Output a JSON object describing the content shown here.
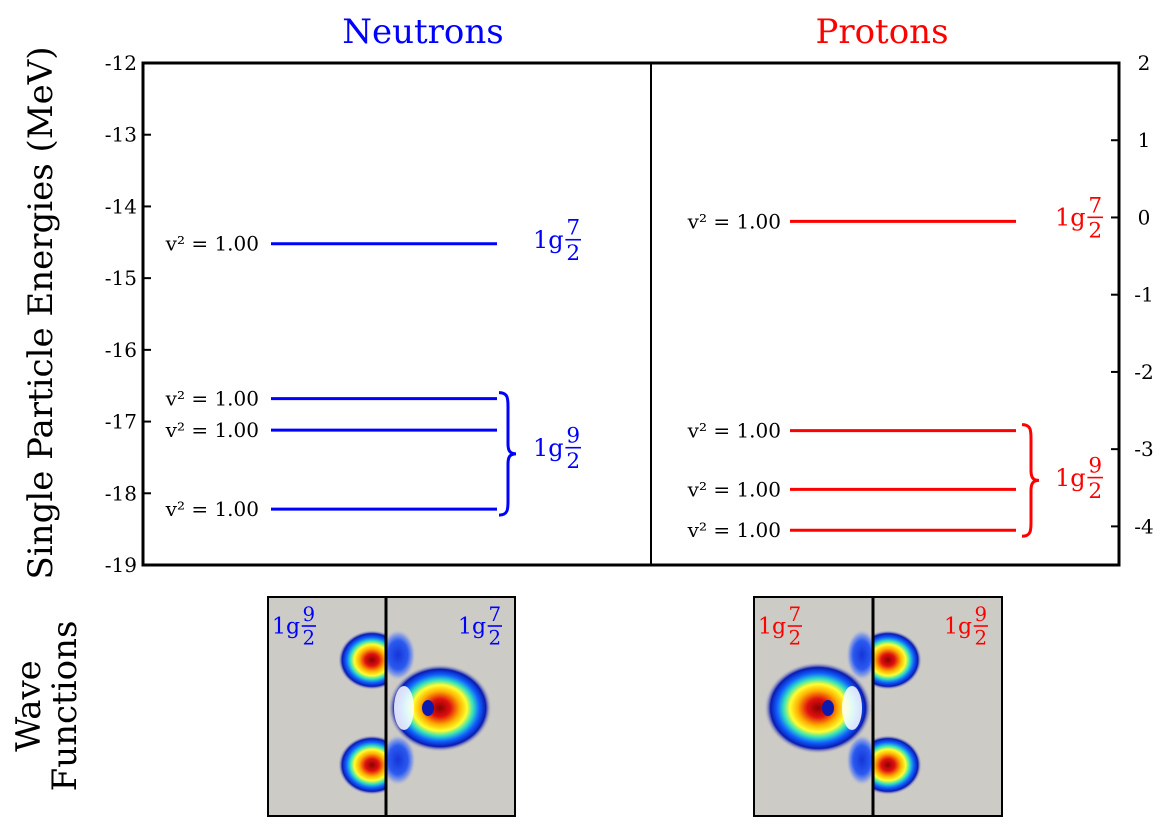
{
  "chart_data": {
    "type": "level-diagram",
    "ylabel": "Single Particle Energies (MeV)",
    "ylim": [
      -19,
      -12
    ],
    "y_ticks": [
      -12,
      -13,
      -14,
      -15,
      -16,
      -17,
      -18,
      -19
    ],
    "y2lim": [
      -4.5,
      2
    ],
    "y2_ticks": [
      2,
      1,
      0,
      -1,
      -2,
      -3,
      -4
    ],
    "panels": [
      {
        "name": "Neutrons",
        "color": "#0000ff",
        "axis": "left",
        "levels": [
          {
            "energy": -14.52,
            "occupation_label": "v² = 1.00",
            "state": "1g",
            "j": "7/2"
          },
          {
            "energy": -16.68,
            "occupation_label": "v² = 1.00",
            "state": "1g",
            "j": "9/2"
          },
          {
            "energy": -17.12,
            "occupation_label": "v² = 1.00",
            "state": "1g",
            "j": "9/2"
          },
          {
            "energy": -18.22,
            "occupation_label": "v² = 1.00",
            "state": "1g",
            "j": "9/2"
          }
        ],
        "state_labels": [
          {
            "state": "1g",
            "num": "7",
            "den": "2",
            "energy": -14.52
          },
          {
            "state": "1g",
            "num": "9",
            "den": "2",
            "energy": -17.42,
            "brace": [
              -16.68,
              -18.22
            ]
          }
        ]
      },
      {
        "name": "Protons",
        "color": "#ff0000",
        "axis": "right",
        "levels": [
          {
            "energy": -0.05,
            "occupation_label": "v² = 1.00",
            "state": "1g",
            "j": "7/2"
          },
          {
            "energy": -2.76,
            "occupation_label": "v² = 1.00",
            "state": "1g",
            "j": "9/2"
          },
          {
            "energy": -3.52,
            "occupation_label": "v² = 1.00",
            "state": "1g",
            "j": "9/2"
          },
          {
            "energy": -4.05,
            "occupation_label": "v² = 1.00",
            "state": "1g",
            "j": "9/2"
          }
        ],
        "state_labels": [
          {
            "state": "1g",
            "num": "7",
            "den": "2",
            "energy": -0.05
          },
          {
            "state": "1g",
            "num": "9",
            "den": "2",
            "energy": -3.42,
            "brace": [
              -2.76,
              -4.05
            ]
          }
        ]
      }
    ],
    "wave_functions": {
      "label": "Wave Functions",
      "neutron_panels": [
        {
          "state": "1g",
          "num": "9",
          "den": "2"
        },
        {
          "state": "1g",
          "num": "7",
          "den": "2"
        }
      ],
      "proton_panels": [
        {
          "state": "1g",
          "num": "7",
          "den": "2"
        },
        {
          "state": "1g",
          "num": "9",
          "den": "2"
        }
      ]
    }
  }
}
